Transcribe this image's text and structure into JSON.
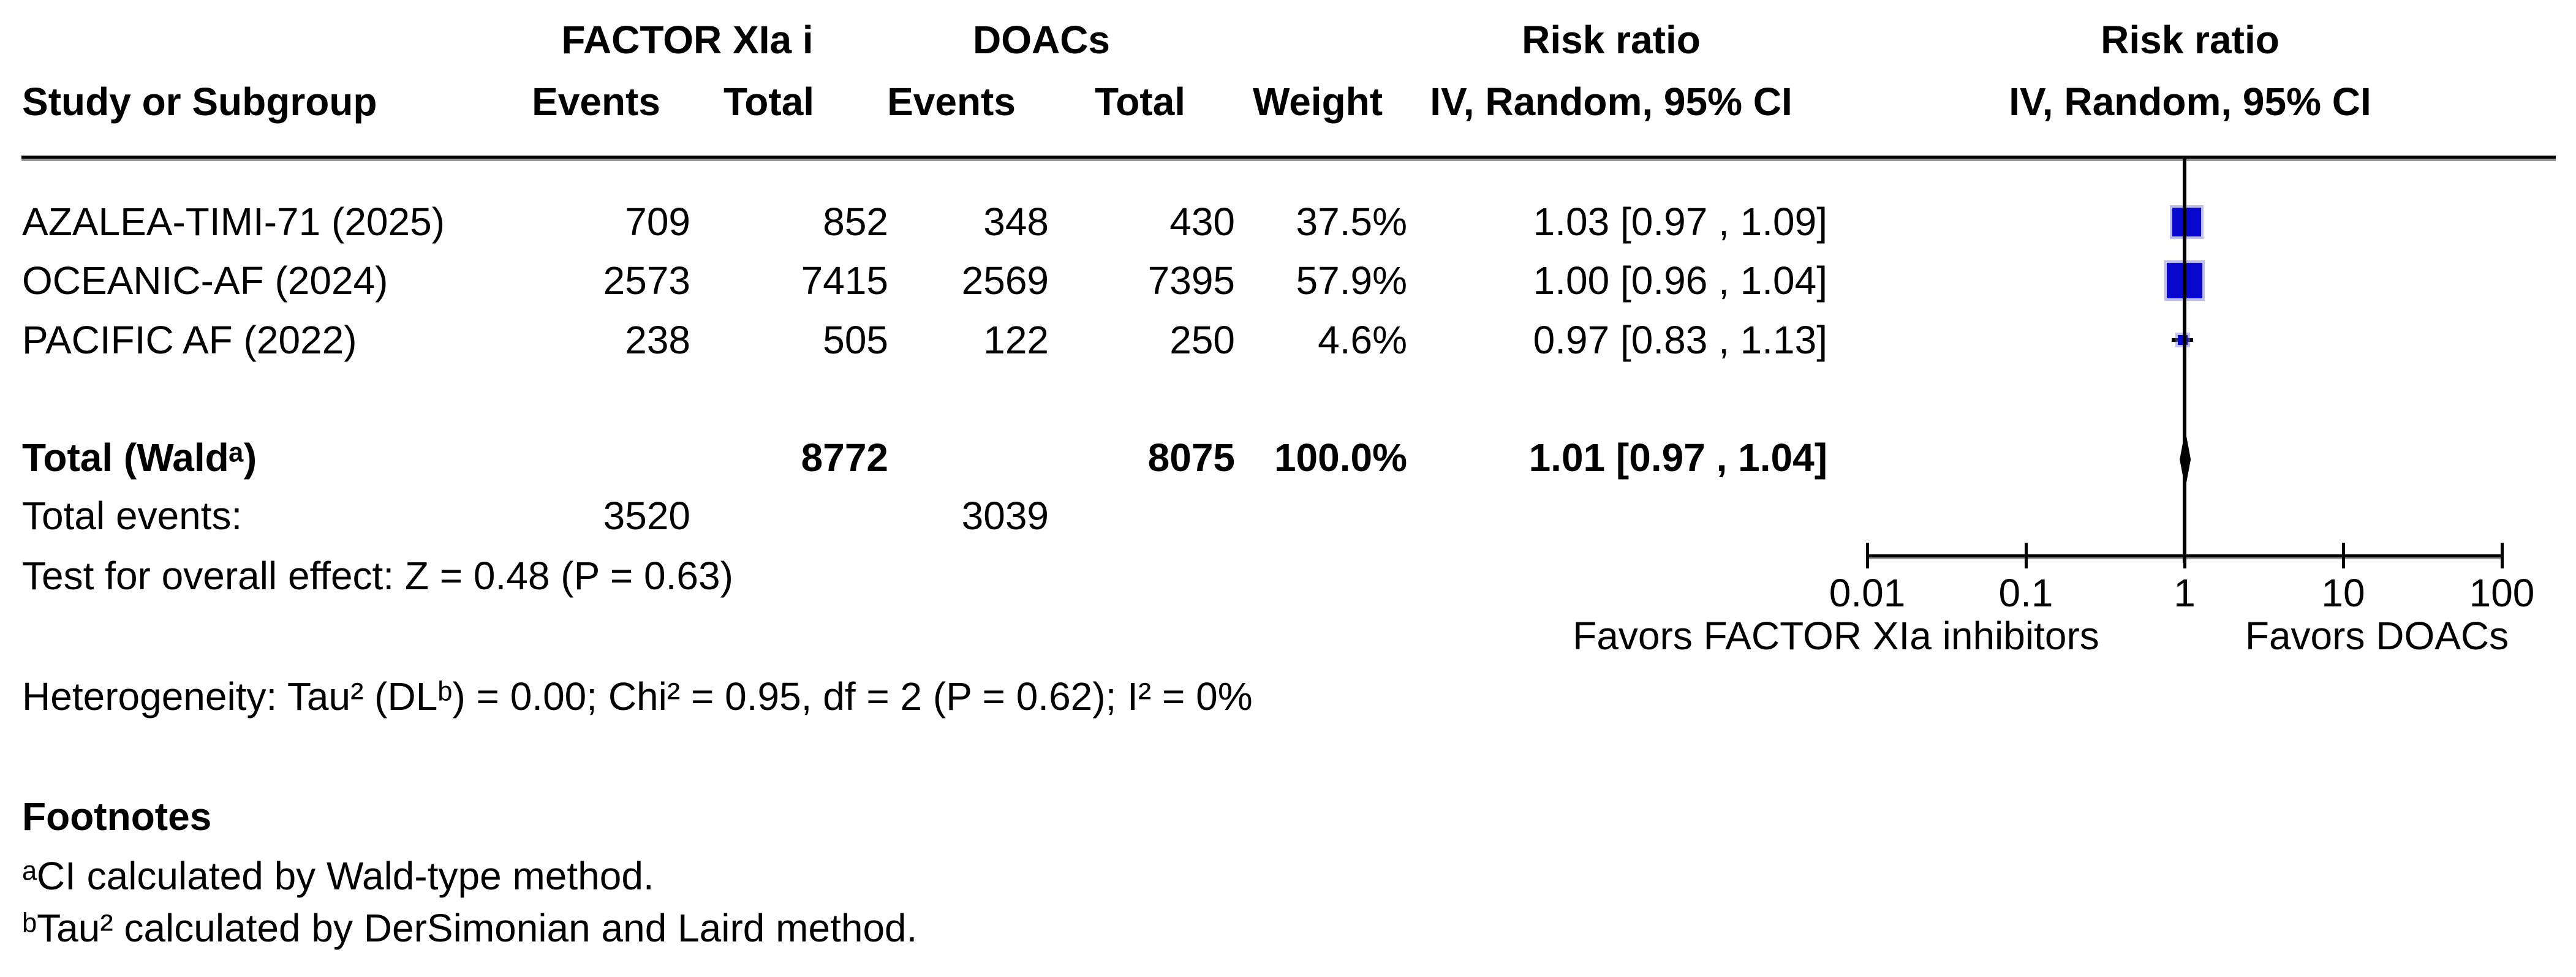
{
  "colors": {
    "marker_blue": "#0707ce",
    "marker_halo": "#9a9ae6",
    "line_black": "#000000",
    "rule_shadow": "#979797",
    "background": "#ffffff"
  },
  "header": {
    "group1": "FACTOR XIa i",
    "group2": "DOACs",
    "study_col": "Study or Subgroup",
    "events_col": "Events",
    "total_col": "Total",
    "weight_col": "Weight",
    "risk_ratio": "Risk ratio",
    "method_ci": "IV, Random, 95% CI"
  },
  "chart_data": {
    "type": "forest",
    "effect_measure": "Risk ratio",
    "model": "IV, Random, 95% CI",
    "x_scale": "log10",
    "x_range": [
      0.01,
      100
    ],
    "axis_values": [
      0.01,
      0.1,
      1,
      10,
      100
    ],
    "axis_ticks": [
      "0.01",
      "0.1",
      "1",
      "10",
      "100"
    ],
    "favors_left": "Favors FACTOR XIa inhibitors",
    "favors_right": "Favors DOACs",
    "studies": [
      {
        "name": "AZALEA-TIMI-71 (2025)",
        "events1": "709",
        "total1": "852",
        "events2": "348",
        "total2": "430",
        "weight": "37.5%",
        "weight_pct": 37.5,
        "rr": 1.03,
        "ci_low": 0.97,
        "ci_high": 1.09,
        "rr_ci": "1.03 [0.97 , 1.09]"
      },
      {
        "name": "OCEANIC-AF (2024)",
        "events1": "2573",
        "total1": "7415",
        "events2": "2569",
        "total2": "7395",
        "weight": "57.9%",
        "weight_pct": 57.9,
        "rr": 1.0,
        "ci_low": 0.96,
        "ci_high": 1.04,
        "rr_ci": "1.00 [0.96 , 1.04]"
      },
      {
        "name": "PACIFIC AF (2022)",
        "events1": "238",
        "total1": "505",
        "events2": "122",
        "total2": "250",
        "weight": "4.6%",
        "weight_pct": 4.6,
        "rr": 0.97,
        "ci_low": 0.83,
        "ci_high": 1.13,
        "rr_ci": "0.97 [0.83 , 1.13]"
      }
    ],
    "total": {
      "label": "Total (Waldᵃ)",
      "total1": "8772",
      "total2": "8075",
      "weight": "100.0%",
      "weight_pct": 100.0,
      "rr": 1.01,
      "ci_low": 0.97,
      "ci_high": 1.04,
      "rr_ci": "1.01 [0.97 , 1.04]"
    },
    "total_events": {
      "label": "Total events:",
      "events1": "3520",
      "events2": "3039"
    },
    "overall_effect": "Test for overall effect: Z = 0.48 (P = 0.63)",
    "heterogeneity": "Heterogeneity: Tau² (DLᵇ) = 0.00; Chi² = 0.95, df = 2 (P = 0.62); I² = 0%"
  },
  "footnotes": {
    "title": "Footnotes",
    "a": "ᵃCI calculated by Wald-type method.",
    "b": "ᵇTau² calculated by DerSimonian and Laird method."
  }
}
